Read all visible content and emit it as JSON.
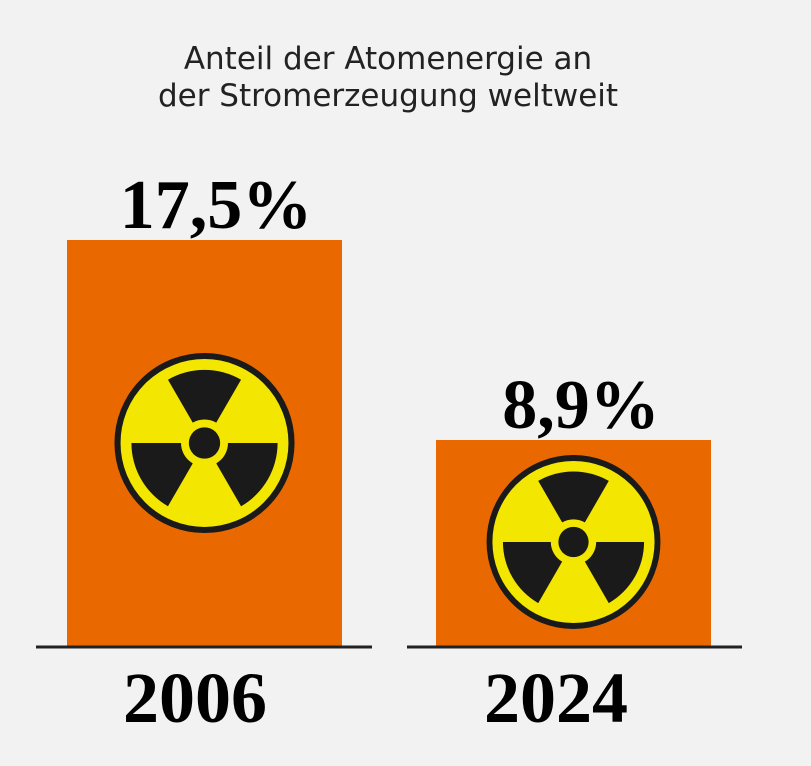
{
  "chart_data": {
    "type": "bar",
    "title_lines": [
      "Anteil der Atomenergie an",
      "der Stromerzeugung weltweit"
    ],
    "categories": [
      "2006",
      "2024"
    ],
    "values": [
      17.5,
      8.9
    ],
    "value_labels": [
      "17,5%",
      "8,9%"
    ],
    "ylim": [
      0,
      17.5
    ],
    "xlabel": "",
    "ylabel": "",
    "grid": false,
    "legend": "none",
    "bar_color": "#e96900",
    "bar_icon": "radiation-trefoil-icon",
    "icon_colors": {
      "fill": "#f3e600",
      "symbol": "#1a1a1a"
    }
  }
}
